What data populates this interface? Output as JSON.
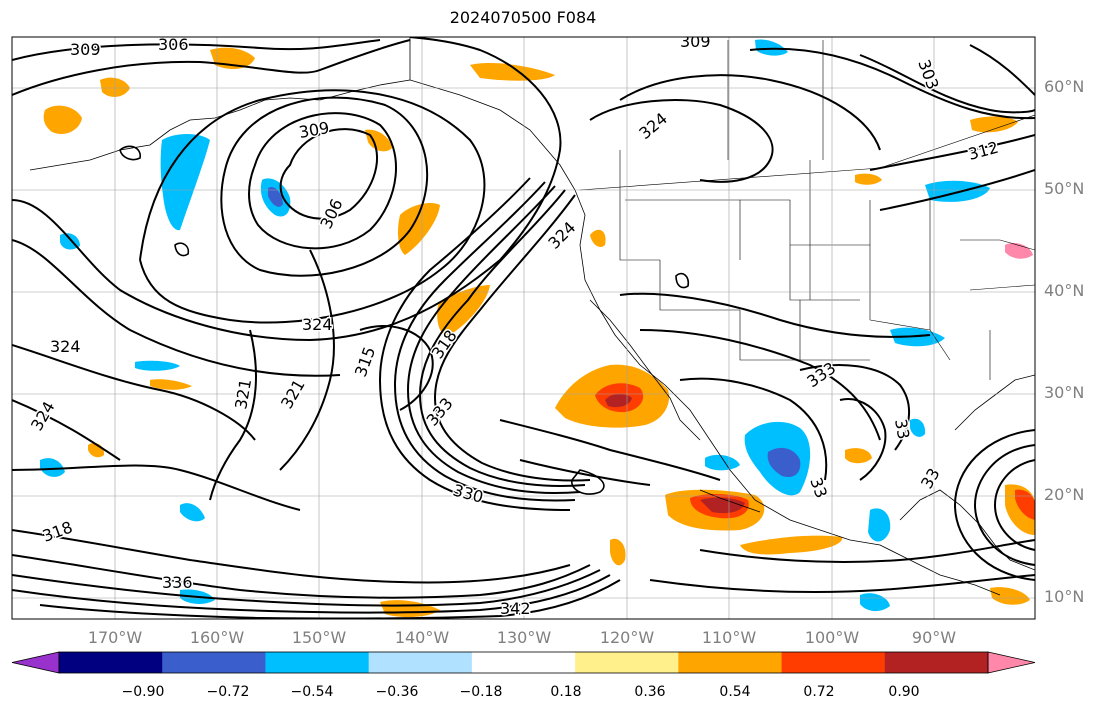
{
  "title": "2024070500 F084",
  "lat_labels": [
    "60°N",
    "50°N",
    "40°N",
    "30°N",
    "20°N",
    "10°N"
  ],
  "lon_labels": [
    "170°W",
    "160°W",
    "150°W",
    "140°W",
    "130°W",
    "120°W",
    "110°W",
    "100°W",
    "90°W"
  ],
  "contour_labels": [
    "309",
    "306",
    "309",
    "303",
    "309",
    "324",
    "306",
    "312",
    "324",
    "315",
    "318",
    "321",
    "321",
    "324",
    "324",
    "324",
    "333",
    "333",
    "33",
    "330",
    "318",
    "336",
    "342",
    "33",
    "33"
  ],
  "colorbar": {
    "ticks": [
      "−0.90",
      "−0.72",
      "−0.54",
      "−0.36",
      "−0.18",
      "0.18",
      "0.36",
      "0.54",
      "0.72",
      "0.90"
    ],
    "colors": [
      "#9932cc",
      "#000080",
      "#3a5fcd",
      "#00bfff",
      "#b0e2ff",
      "#ffffff",
      "#fff08c",
      "#ffa500",
      "#ff3d00",
      "#b22222",
      "#ff88aa"
    ]
  }
}
